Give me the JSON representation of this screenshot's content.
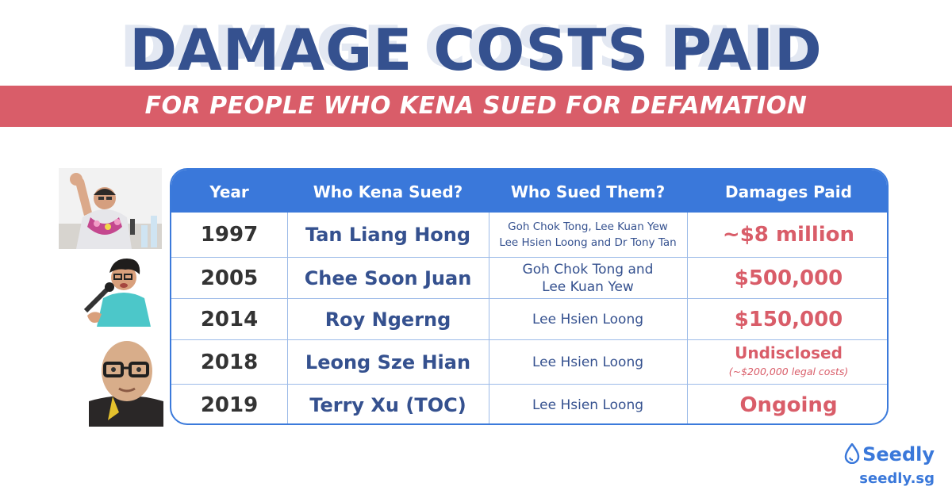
{
  "title": "DAMAGE COSTS PAID",
  "subtitle": "FOR PEOPLE WHO KENA SUED FOR DEFAMATION",
  "colors": {
    "title": "#35518f",
    "banner": "#d95d69",
    "table_header": "#3a78da",
    "damages": "#d95d69"
  },
  "table": {
    "headers": [
      "Year",
      "Who Kena Sued?",
      "Who Sued Them?",
      "Damages Paid"
    ],
    "rows": [
      {
        "year": "1997",
        "sued": "Tan Liang Hong",
        "sued_by_1": "Goh Chok Tong, Lee Kuan Yew",
        "sued_by_2": "Lee Hsien Loong and Dr Tony Tan",
        "damages": "~$8 million"
      },
      {
        "year": "2005",
        "sued": "Chee Soon Juan",
        "sued_by_1": "Goh Chok Tong and",
        "sued_by_2": "Lee Kuan Yew",
        "damages": "$500,000"
      },
      {
        "year": "2014",
        "sued": "Roy Ngerng",
        "sued_by_1": "Lee Hsien Loong",
        "damages": "$150,000"
      },
      {
        "year": "2018",
        "sued": "Leong Sze Hian",
        "sued_by_1": "Lee Hsien Loong",
        "damages": "Undisclosed",
        "damages_note": "(~$200,000 legal costs)"
      },
      {
        "year": "2019",
        "sued": "Terry Xu (TOC)",
        "sued_by_1": "Lee Hsien Loong",
        "damages": "Ongoing"
      }
    ]
  },
  "photos": [
    {
      "icon": "person-photo-speaker-fist"
    },
    {
      "icon": "person-photo-microphone"
    },
    {
      "icon": "person-photo-glasses"
    }
  ],
  "logo": {
    "brand": "Seedly",
    "url": "seedly.sg",
    "icon": "drop-icon"
  }
}
